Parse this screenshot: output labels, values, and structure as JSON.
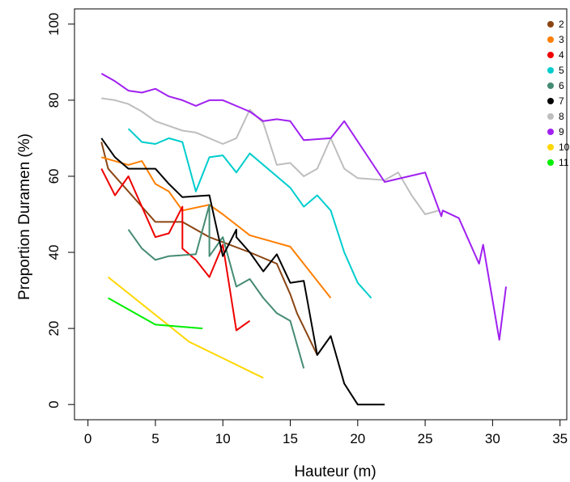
{
  "chart_data": {
    "type": "line",
    "title": "",
    "xlabel": "Hauteur (m)",
    "ylabel": "Proportion Duramen (%)",
    "xlim": [
      -1,
      35.5
    ],
    "ylim": [
      -4,
      104
    ],
    "x_ticks": [
      0,
      5,
      10,
      15,
      20,
      25,
      30,
      35
    ],
    "y_ticks": [
      0,
      20,
      40,
      60,
      80,
      100
    ],
    "grid": false,
    "legend_position": "top-right",
    "series": [
      {
        "name": "2",
        "color": "#8B4513",
        "points": [
          [
            1.0,
            69.0
          ],
          [
            1.5,
            62.0
          ],
          [
            5.0,
            48.0
          ],
          [
            7.0,
            48.0
          ],
          [
            9.0,
            44.0
          ],
          [
            12.0,
            40.0
          ],
          [
            14.0,
            37.0
          ],
          [
            15.0,
            29.0
          ],
          [
            15.5,
            24.0
          ],
          [
            17.0,
            13.0
          ]
        ]
      },
      {
        "name": "3",
        "color": "#FF7F00",
        "points": [
          [
            1.0,
            65.0
          ],
          [
            3.0,
            63.0
          ],
          [
            4.0,
            64.0
          ],
          [
            5.0,
            58.0
          ],
          [
            6.0,
            56.0
          ],
          [
            7.0,
            51.0
          ],
          [
            9.0,
            52.5
          ],
          [
            10.0,
            50.0
          ],
          [
            12.0,
            44.5
          ],
          [
            15.0,
            41.5
          ],
          [
            18.0,
            28.0
          ]
        ]
      },
      {
        "name": "4",
        "color": "#EE0000",
        "points": [
          [
            1.0,
            62.0
          ],
          [
            2.0,
            55.0
          ],
          [
            3.0,
            60.0
          ],
          [
            5.0,
            44.0
          ],
          [
            6.0,
            45.0
          ],
          [
            7.0,
            52.0
          ],
          [
            7.0,
            41.0
          ],
          [
            8.0,
            38.0
          ],
          [
            9.0,
            33.5
          ],
          [
            10.0,
            42.0
          ],
          [
            11.0,
            19.5
          ],
          [
            12.0,
            22.0
          ]
        ]
      },
      {
        "name": "5",
        "color": "#00CDCD",
        "points": [
          [
            3.0,
            72.5
          ],
          [
            4.0,
            69.0
          ],
          [
            5.0,
            68.5
          ],
          [
            6.0,
            70.0
          ],
          [
            7.0,
            69.0
          ],
          [
            8.0,
            56.0
          ],
          [
            9.0,
            65.0
          ],
          [
            10.0,
            65.5
          ],
          [
            11.0,
            61.0
          ],
          [
            12.0,
            66.0
          ],
          [
            15.0,
            57.0
          ],
          [
            16.0,
            52.0
          ],
          [
            17.0,
            55.0
          ],
          [
            18.0,
            51.0
          ],
          [
            19.0,
            40.0
          ],
          [
            20.0,
            32.0
          ],
          [
            21.0,
            28.0
          ]
        ]
      },
      {
        "name": "6",
        "color": "#458B74",
        "points": [
          [
            3.0,
            46.0
          ],
          [
            4.0,
            41.0
          ],
          [
            5.0,
            38.0
          ],
          [
            6.0,
            39.0
          ],
          [
            8.0,
            39.5
          ],
          [
            9.0,
            52.5
          ],
          [
            9.0,
            39.0
          ],
          [
            10.0,
            44.0
          ],
          [
            11.0,
            31.0
          ],
          [
            12.0,
            33.0
          ],
          [
            13.0,
            28.0
          ],
          [
            14.0,
            24.0
          ],
          [
            15.0,
            22.0
          ],
          [
            16.0,
            9.5
          ]
        ]
      },
      {
        "name": "7",
        "color": "#000000",
        "points": [
          [
            1.0,
            70.0
          ],
          [
            2.0,
            65.0
          ],
          [
            3.0,
            62.0
          ],
          [
            5.0,
            62.0
          ],
          [
            6.0,
            58.0
          ],
          [
            7.0,
            54.5
          ],
          [
            9.0,
            55.0
          ],
          [
            10.0,
            39.0
          ],
          [
            11.0,
            46.0
          ],
          [
            11.0,
            44.0
          ],
          [
            12.0,
            40.0
          ],
          [
            13.0,
            35.0
          ],
          [
            14.0,
            39.5
          ],
          [
            15.0,
            32.0
          ],
          [
            16.0,
            32.5
          ],
          [
            17.0,
            13.0
          ],
          [
            18.0,
            18.0
          ],
          [
            19.0,
            5.5
          ],
          [
            20.0,
            0.0
          ],
          [
            22.0,
            0.0
          ]
        ]
      },
      {
        "name": "8",
        "color": "#BEBEBE",
        "points": [
          [
            1.0,
            80.5
          ],
          [
            2.0,
            80.0
          ],
          [
            3.0,
            79.0
          ],
          [
            4.0,
            77.0
          ],
          [
            5.0,
            74.5
          ],
          [
            7.0,
            72.0
          ],
          [
            8.0,
            71.5
          ],
          [
            10.0,
            68.5
          ],
          [
            11.0,
            70.0
          ],
          [
            12.0,
            77.5
          ],
          [
            13.0,
            74.0
          ],
          [
            14.0,
            63.0
          ],
          [
            15.0,
            63.5
          ],
          [
            16.0,
            60.0
          ],
          [
            17.0,
            62.0
          ],
          [
            18.0,
            70.0
          ],
          [
            19.0,
            62.0
          ],
          [
            20.0,
            59.5
          ],
          [
            22.0,
            59.0
          ],
          [
            23.0,
            61.0
          ],
          [
            24.0,
            55.0
          ],
          [
            25.0,
            50.0
          ],
          [
            26.0,
            51.0
          ]
        ]
      },
      {
        "name": "9",
        "color": "#A020F0",
        "points": [
          [
            1.0,
            87.0
          ],
          [
            2.0,
            85.0
          ],
          [
            3.0,
            82.5
          ],
          [
            4.0,
            82.0
          ],
          [
            5.0,
            83.0
          ],
          [
            6.0,
            81.0
          ],
          [
            7.0,
            80.0
          ],
          [
            8.0,
            78.5
          ],
          [
            9.0,
            80.0
          ],
          [
            10.0,
            80.0
          ],
          [
            12.0,
            77.0
          ],
          [
            13.0,
            74.5
          ],
          [
            14.0,
            75.0
          ],
          [
            15.0,
            74.5
          ],
          [
            16.0,
            69.5
          ],
          [
            18.0,
            70.0
          ],
          [
            19.0,
            74.5
          ],
          [
            22.0,
            58.5
          ],
          [
            25.0,
            61.0
          ],
          [
            26.2,
            49.5
          ],
          [
            26.3,
            51.0
          ],
          [
            27.5,
            49.0
          ],
          [
            29.0,
            37.0
          ],
          [
            29.3,
            42.0
          ],
          [
            30.5,
            17.0
          ],
          [
            31.0,
            31.0
          ]
        ]
      },
      {
        "name": "10",
        "color": "#FFD700",
        "points": [
          [
            1.5,
            33.5
          ],
          [
            7.5,
            16.5
          ],
          [
            13.0,
            7.0
          ]
        ]
      },
      {
        "name": "11",
        "color": "#00EE00",
        "points": [
          [
            1.5,
            28.0
          ],
          [
            5.0,
            21.0
          ],
          [
            8.5,
            20.0
          ]
        ]
      }
    ]
  }
}
